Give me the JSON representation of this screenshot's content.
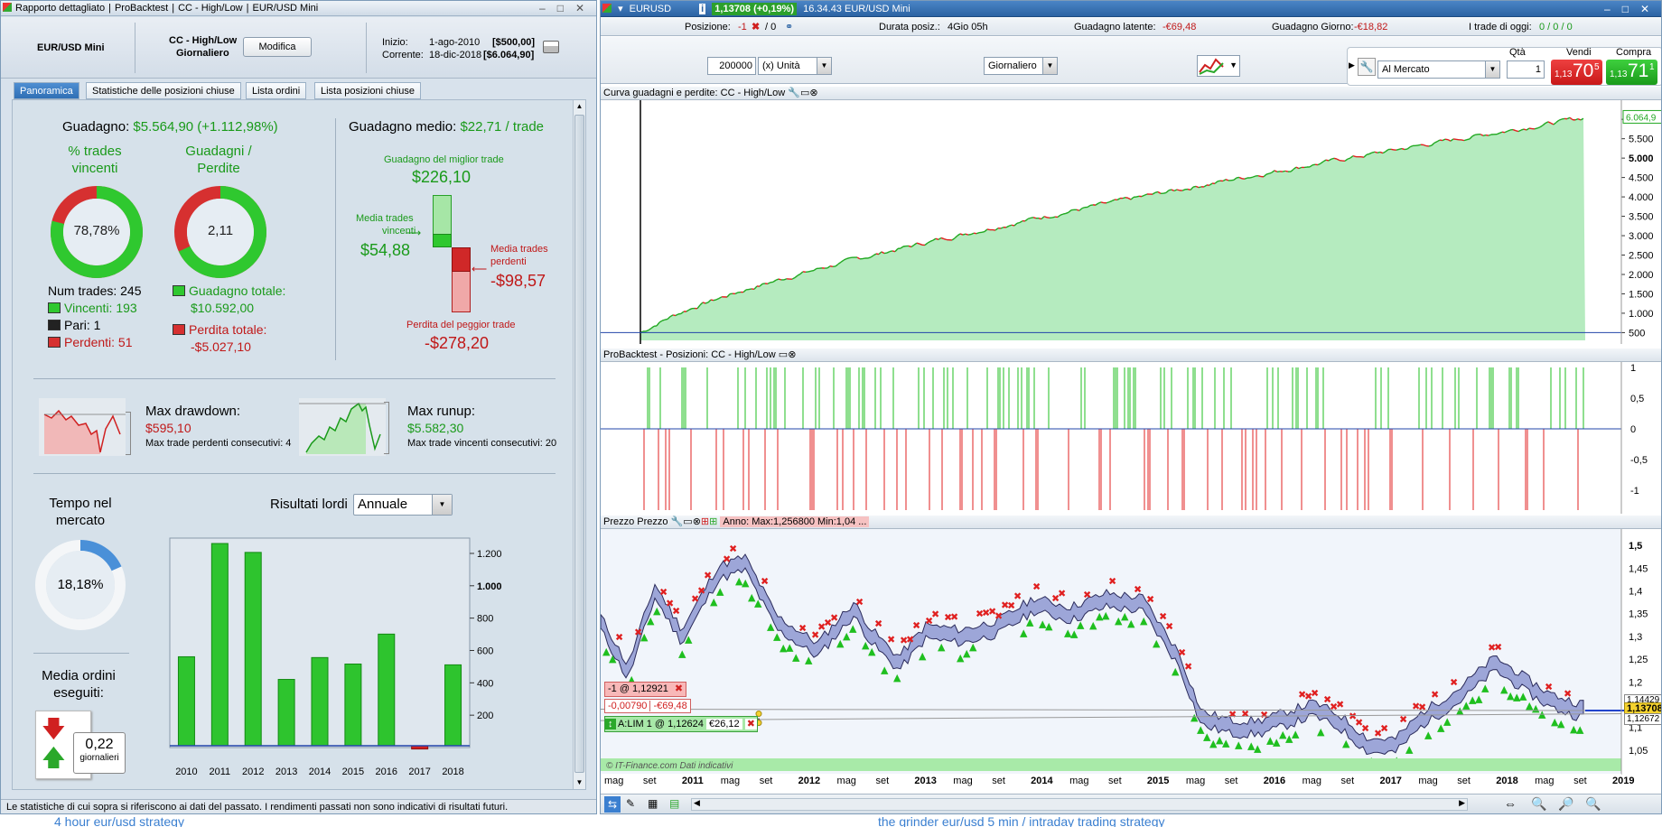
{
  "left": {
    "title_tabs": [
      "Rapporto dettagliato",
      "ProBacktest",
      "CC - High/Low",
      "EUR/USD Mini"
    ],
    "instrument": "EUR/USD Mini",
    "system_name": "CC - High/Low",
    "timeframe": "Giornaliero",
    "modify_label": "Modifica",
    "inizio_label": "Inizio:",
    "inizio_date": "1-ago-2010",
    "inizio_value": "[$500,00]",
    "corrente_label": "Corrente:",
    "corrente_date": "18-dic-2018",
    "corrente_value": "[$6.064,90]",
    "tabs": [
      "Panoramica",
      "Statistiche delle posizioni chiuse",
      "Lista ordini",
      "Lista posizioni chiuse"
    ],
    "guadagno_label": "Guadagno:",
    "guadagno_value": "$5.564,90 (+1.112,98%)",
    "pct_trades_label_1": "% trades",
    "pct_trades_label_2": "vincenti",
    "pct_trades_value": "78,78%",
    "pct_trades_fraction": 0.7878,
    "gp_label_1": "Guadagni /",
    "gp_label_2": "Perdite",
    "gp_value": "2,11",
    "gp_fraction": 0.679,
    "num_trades": "Num trades: 245",
    "vincenti": "Vincenti: 193",
    "pari": "Pari: 1",
    "perdenti": "Perdenti: 51",
    "guadagno_totale_label": "Guadagno totale:",
    "guadagno_totale": "$10.592,00",
    "perdita_totale_label": "Perdita totale:",
    "perdita_totale": "-$5.027,10",
    "guadagno_medio_label": "Guadagno medio:",
    "guadagno_medio": "$22,71 / trade",
    "best_trade_label": "Guadagno del miglior trade",
    "best_trade": "$226,10",
    "media_vincenti_label_1": "Media trades",
    "media_vincenti_label_2": "vincenti",
    "media_vincenti": "$54,88",
    "media_perdenti_label_1": "Media trades",
    "media_perdenti_label_2": "perdenti",
    "media_perdenti": "-$98,57",
    "worst_trade_label": "Perdita del peggior trade",
    "worst_trade": "-$278,20",
    "max_drawdown_label": "Max drawdown:",
    "max_drawdown": "$595,10",
    "max_loss_consec": "Max trade perdenti consecutivi:  4",
    "max_runup_label": "Max runup:",
    "max_runup": "$5.582,30",
    "max_win_consec": "Max trade vincenti consecutivi: 20",
    "tempo_label_1": "Tempo nel",
    "tempo_label_2": "mercato",
    "tempo_value": "18,18%",
    "tempo_fraction": 0.1818,
    "media_ordini_label_1": "Media ordini",
    "media_ordini_label_2": "eseguiti:",
    "media_ordini_value": "0,22",
    "media_ordini_unit": "giornalieri",
    "risultati_label": "Risultati lordi",
    "risultati_select": "Annuale",
    "footer": "Le statistiche di cui sopra si riferiscono ai dati del passato. I rendimenti passati non sono indicativi di risultati futuri."
  },
  "chart_data": {
    "type": "bar",
    "categories": [
      "2010",
      "2011",
      "2012",
      "2013",
      "2014",
      "2015",
      "2016",
      "2017",
      "2018"
    ],
    "values": [
      550,
      1250,
      1195,
      410,
      545,
      505,
      690,
      -20,
      500
    ],
    "ylim": [
      0,
      1250
    ],
    "yticks": [
      "1.200",
      "1.000",
      "800",
      "600",
      "400",
      "200"
    ],
    "colors": {
      "pos": "#2ec42e",
      "neg": "#d02020"
    }
  },
  "right": {
    "symbol": "EURUSD",
    "price_badge": "1,13708 (+0,19%)",
    "title_rest": "16.34.43 EUR/USD Mini",
    "posizione_label": "Posizione:",
    "posizione_value": "-1",
    "posizione_rest": "/ 0",
    "durata_label": "Durata posiz.:",
    "durata_value": "4Gio 05h",
    "latente_label": "Guadagno latente:",
    "latente_value": "-€69,48",
    "giorno_label": "Guadagno Giorno:",
    "giorno_value": "-€18,82",
    "trade_oggi_label": "I trade di oggi:",
    "trade_oggi_value": "0 / 0 / 0",
    "qty_value": "200000",
    "unit_select": "(x) Unità",
    "period_select": "Giornaliero",
    "order_type": "Al Mercato",
    "qta_label": "Qtà",
    "qta_value": "1",
    "vendi_label": "Vendi",
    "vendi_small": "1,13",
    "vendi_big": "70",
    "vendi_sup": "5",
    "compra_label": "Compra",
    "compra_small": "1,13",
    "compra_big": "71",
    "compra_sup": "1",
    "panel1_title": "Curva guadagni e perdite: CC - High/Low",
    "panel1_last": "6.064,9",
    "panel1_ticks": [
      "6.000",
      "5.500",
      "5.000",
      "4.500",
      "4.000",
      "3.500",
      "3.000",
      "2.500",
      "2.000",
      "1.500",
      "1.000",
      "500"
    ],
    "panel2_title": "ProBacktest - Posizioni: CC - High/Low",
    "panel2_ticks": [
      "1",
      "0,5",
      "0",
      "-0,5",
      "-1"
    ],
    "panel3_title": "Prezzo Prezzo",
    "panel3_info": "Anno: Max:1,256800 Min:1,04 ...",
    "panel3_ticks": [
      "1,5",
      "1,45",
      "1,4",
      "1,35",
      "1,3",
      "1,25",
      "1,2",
      "1,15",
      "1,1",
      "1,05"
    ],
    "price_tag": "1,13708",
    "price_tag2": "1,14429",
    "price_tag3": "1,12672",
    "order1": "-1 @ 1,12921",
    "order1_pl1": "-0,00790",
    "order1_pl2": "-€69,48",
    "order2": "A:LIM  1 @ 1,12624",
    "order2_pl": "€26,12",
    "copyright": "© IT-Finance.com Dati indicativi",
    "xaxis": [
      {
        "t": "mag",
        "b": false
      },
      {
        "t": "set",
        "b": false
      },
      {
        "t": "2011",
        "b": true
      },
      {
        "t": "mag",
        "b": false
      },
      {
        "t": "set",
        "b": false
      },
      {
        "t": "2012",
        "b": true
      },
      {
        "t": "mag",
        "b": false
      },
      {
        "t": "set",
        "b": false
      },
      {
        "t": "2013",
        "b": true
      },
      {
        "t": "mag",
        "b": false
      },
      {
        "t": "set",
        "b": false
      },
      {
        "t": "2014",
        "b": true
      },
      {
        "t": "mag",
        "b": false
      },
      {
        "t": "set",
        "b": false
      },
      {
        "t": "2015",
        "b": true
      },
      {
        "t": "mag",
        "b": false
      },
      {
        "t": "set",
        "b": false
      },
      {
        "t": "2016",
        "b": true
      },
      {
        "t": "mag",
        "b": false
      },
      {
        "t": "set",
        "b": false
      },
      {
        "t": "2017",
        "b": true
      },
      {
        "t": "mag",
        "b": false
      },
      {
        "t": "set",
        "b": false
      },
      {
        "t": "2018",
        "b": true
      },
      {
        "t": "mag",
        "b": false
      },
      {
        "t": "set",
        "b": false
      },
      {
        "t": "2019",
        "b": true
      }
    ],
    "bottom_bg_text_1": "4 hour eur/usd strategy",
    "bottom_bg_text_2": "the grinder eur/usd 5 min / intraday trading strategy"
  }
}
